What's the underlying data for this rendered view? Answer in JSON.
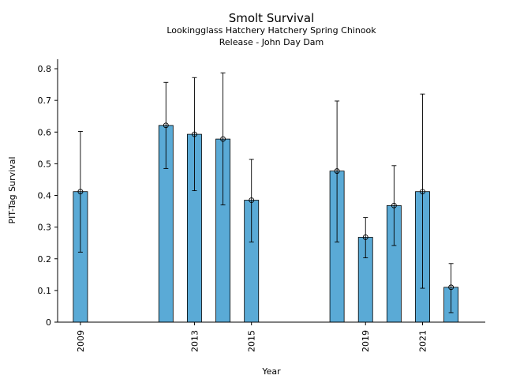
{
  "chart_data": {
    "type": "bar",
    "title": "Smolt Survival",
    "subtitle_lines": [
      "Lookingglass Hatchery Hatchery Spring Chinook",
      "Release - John Day Dam"
    ],
    "xlabel": "Year",
    "ylabel": "PIT-Tag Survival",
    "ylim": [
      0,
      0.83
    ],
    "xlim": [
      2008.2,
      2023.2
    ],
    "yticks": [
      "0",
      "0.1",
      "0.2",
      "0.3",
      "0.4",
      "0.5",
      "0.6",
      "0.7",
      "0.8"
    ],
    "xticks": [
      "2009",
      "2013",
      "2015",
      "2019",
      "2021"
    ],
    "bar_color": "#5aaad6",
    "series": [
      {
        "name": "Survival",
        "x": [
          2009,
          2012,
          2013,
          2014,
          2015,
          2018,
          2019,
          2020,
          2021,
          2022
        ],
        "values": [
          0.412,
          0.621,
          0.593,
          0.578,
          0.385,
          0.477,
          0.268,
          0.368,
          0.412,
          0.11
        ],
        "error_low": [
          0.221,
          0.485,
          0.415,
          0.37,
          0.253,
          0.253,
          0.203,
          0.242,
          0.107,
          0.03
        ],
        "error_high": [
          0.602,
          0.757,
          0.772,
          0.787,
          0.514,
          0.698,
          0.33,
          0.494,
          0.72,
          0.185
        ]
      }
    ]
  }
}
